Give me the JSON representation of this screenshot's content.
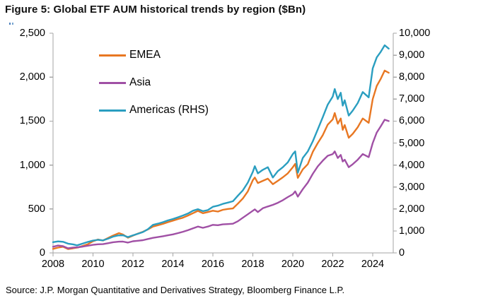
{
  "title": "Figure 5: Global ETF AUM historical trends by region ($Bn)",
  "source": "Source: J.P. Morgan Quantitative and Derivatives Strategy, Bloomberg Finance L.P.",
  "axis_color": "#a6a6a6",
  "chart_data": {
    "type": "line",
    "title": "Figure 5: Global ETF AUM historical trends by region ($Bn)",
    "grid": false,
    "legend_position": "top-left-inside",
    "x_axis": {
      "range": [
        2008,
        2025.0
      ],
      "ticks": [
        {
          "v": 2008,
          "label": "2008"
        },
        {
          "v": 2010,
          "label": "2010"
        },
        {
          "v": 2012,
          "label": "2012"
        },
        {
          "v": 2014,
          "label": "2014"
        },
        {
          "v": 2016,
          "label": "2016"
        },
        {
          "v": 2018,
          "label": "2018"
        },
        {
          "v": 2020,
          "label": "2020"
        },
        {
          "v": 2022,
          "label": "2022"
        },
        {
          "v": 2024,
          "label": "2024"
        }
      ]
    },
    "left_axis": {
      "range": [
        0,
        2500
      ],
      "ticks": [
        {
          "v": 0,
          "label": "0"
        },
        {
          "v": 500,
          "label": "500"
        },
        {
          "v": 1000,
          "label": "1,000"
        },
        {
          "v": 1500,
          "label": "1,500"
        },
        {
          "v": 2000,
          "label": "2,000"
        },
        {
          "v": 2500,
          "label": "2,500"
        }
      ]
    },
    "right_axis": {
      "range": [
        0,
        10000
      ],
      "ticks": [
        {
          "v": 0,
          "label": "0"
        },
        {
          "v": 1000,
          "label": "1,000"
        },
        {
          "v": 2000,
          "label": "2,000"
        },
        {
          "v": 3000,
          "label": "3,000"
        },
        {
          "v": 4000,
          "label": "4,000"
        },
        {
          "v": 5000,
          "label": "5,000"
        },
        {
          "v": 6000,
          "label": "6,000"
        },
        {
          "v": 7000,
          "label": "7,000"
        },
        {
          "v": 8000,
          "label": "8,000"
        },
        {
          "v": 9000,
          "label": "9,000"
        },
        {
          "v": 10000,
          "label": "10,000"
        }
      ]
    },
    "series": [
      {
        "name": "EMEA",
        "color": "#e87722",
        "axis": "left",
        "points": [
          [
            2008,
            46
          ],
          [
            2008.25,
            60
          ],
          [
            2008.5,
            70
          ],
          [
            2008.75,
            44
          ],
          [
            2009,
            52
          ],
          [
            2009.25,
            62
          ],
          [
            2009.5,
            80
          ],
          [
            2009.75,
            100
          ],
          [
            2010,
            133
          ],
          [
            2010.25,
            153
          ],
          [
            2010.5,
            141
          ],
          [
            2010.75,
            169
          ],
          [
            2011,
            197
          ],
          [
            2011.3,
            225
          ],
          [
            2011.5,
            209
          ],
          [
            2011.75,
            173
          ],
          [
            2012,
            197
          ],
          [
            2012.25,
            220
          ],
          [
            2012.5,
            240
          ],
          [
            2012.75,
            268
          ],
          [
            2013,
            300
          ],
          [
            2013.25,
            315
          ],
          [
            2013.5,
            330
          ],
          [
            2013.75,
            350
          ],
          [
            2014,
            367
          ],
          [
            2014.25,
            385
          ],
          [
            2014.5,
            400
          ],
          [
            2014.75,
            425
          ],
          [
            2015,
            452
          ],
          [
            2015.25,
            478
          ],
          [
            2015.5,
            452
          ],
          [
            2015.75,
            465
          ],
          [
            2016,
            480
          ],
          [
            2016.25,
            470
          ],
          [
            2016.5,
            490
          ],
          [
            2016.75,
            500
          ],
          [
            2017,
            506
          ],
          [
            2017.25,
            560
          ],
          [
            2017.5,
            620
          ],
          [
            2017.75,
            700
          ],
          [
            2018,
            828
          ],
          [
            2018.1,
            858
          ],
          [
            2018.25,
            795
          ],
          [
            2018.5,
            820
          ],
          [
            2018.75,
            845
          ],
          [
            2019,
            782
          ],
          [
            2019.25,
            820
          ],
          [
            2019.5,
            860
          ],
          [
            2019.75,
            905
          ],
          [
            2020,
            975
          ],
          [
            2020.12,
            1013
          ],
          [
            2020.25,
            854
          ],
          [
            2020.5,
            950
          ],
          [
            2020.75,
            1010
          ],
          [
            2021,
            1150
          ],
          [
            2021.25,
            1250
          ],
          [
            2021.5,
            1340
          ],
          [
            2021.75,
            1460
          ],
          [
            2022,
            1520
          ],
          [
            2022.1,
            1592
          ],
          [
            2022.25,
            1470
          ],
          [
            2022.4,
            1530
          ],
          [
            2022.5,
            1400
          ],
          [
            2022.6,
            1455
          ],
          [
            2022.8,
            1310
          ],
          [
            2023,
            1355
          ],
          [
            2023.25,
            1430
          ],
          [
            2023.5,
            1530
          ],
          [
            2023.8,
            1480
          ],
          [
            2024,
            1750
          ],
          [
            2024.2,
            1900
          ],
          [
            2024.4,
            1980
          ],
          [
            2024.6,
            2075
          ],
          [
            2024.8,
            2050
          ]
        ]
      },
      {
        "name": "Asia",
        "color": "#a050a5",
        "axis": "left",
        "points": [
          [
            2008,
            70
          ],
          [
            2008.25,
            84
          ],
          [
            2008.5,
            76
          ],
          [
            2008.75,
            52
          ],
          [
            2009,
            60
          ],
          [
            2009.25,
            64
          ],
          [
            2009.5,
            72
          ],
          [
            2009.75,
            82
          ],
          [
            2010,
            92
          ],
          [
            2010.25,
            98
          ],
          [
            2010.5,
            100
          ],
          [
            2010.75,
            110
          ],
          [
            2011,
            121
          ],
          [
            2011.3,
            128
          ],
          [
            2011.5,
            129
          ],
          [
            2011.75,
            117
          ],
          [
            2012,
            133
          ],
          [
            2012.25,
            138
          ],
          [
            2012.5,
            145
          ],
          [
            2012.75,
            158
          ],
          [
            2013,
            171
          ],
          [
            2013.25,
            180
          ],
          [
            2013.5,
            190
          ],
          [
            2013.75,
            200
          ],
          [
            2014,
            211
          ],
          [
            2014.25,
            225
          ],
          [
            2014.5,
            240
          ],
          [
            2014.75,
            258
          ],
          [
            2015,
            279
          ],
          [
            2015.25,
            300
          ],
          [
            2015.5,
            285
          ],
          [
            2015.75,
            300
          ],
          [
            2016,
            319
          ],
          [
            2016.25,
            315
          ],
          [
            2016.5,
            325
          ],
          [
            2016.75,
            328
          ],
          [
            2017,
            332
          ],
          [
            2017.25,
            360
          ],
          [
            2017.5,
            400
          ],
          [
            2017.75,
            440
          ],
          [
            2018,
            480
          ],
          [
            2018.1,
            495
          ],
          [
            2018.25,
            465
          ],
          [
            2018.5,
            508
          ],
          [
            2018.75,
            528
          ],
          [
            2019,
            547
          ],
          [
            2019.25,
            570
          ],
          [
            2019.5,
            600
          ],
          [
            2019.75,
            635
          ],
          [
            2020,
            667
          ],
          [
            2020.12,
            700
          ],
          [
            2020.25,
            640
          ],
          [
            2020.5,
            725
          ],
          [
            2020.75,
            800
          ],
          [
            2021,
            900
          ],
          [
            2021.25,
            985
          ],
          [
            2021.5,
            1050
          ],
          [
            2021.75,
            1105
          ],
          [
            2022,
            1125
          ],
          [
            2022.1,
            1155
          ],
          [
            2022.25,
            1080
          ],
          [
            2022.4,
            1115
          ],
          [
            2022.5,
            1040
          ],
          [
            2022.6,
            1060
          ],
          [
            2022.8,
            975
          ],
          [
            2023,
            1010
          ],
          [
            2023.25,
            1060
          ],
          [
            2023.5,
            1125
          ],
          [
            2023.8,
            1090
          ],
          [
            2024,
            1250
          ],
          [
            2024.2,
            1370
          ],
          [
            2024.4,
            1440
          ],
          [
            2024.6,
            1515
          ],
          [
            2024.8,
            1500
          ]
        ]
      },
      {
        "name": "Americas (RHS)",
        "color": "#2a9ec0",
        "axis": "right",
        "points": [
          [
            2008,
            490
          ],
          [
            2008.25,
            525
          ],
          [
            2008.5,
            505
          ],
          [
            2008.75,
            420
          ],
          [
            2009,
            390
          ],
          [
            2009.2,
            345
          ],
          [
            2009.5,
            430
          ],
          [
            2009.75,
            500
          ],
          [
            2010,
            560
          ],
          [
            2010.25,
            595
          ],
          [
            2010.5,
            570
          ],
          [
            2010.75,
            645
          ],
          [
            2011,
            740
          ],
          [
            2011.25,
            795
          ],
          [
            2011.5,
            805
          ],
          [
            2011.75,
            720
          ],
          [
            2012,
            800
          ],
          [
            2012.25,
            870
          ],
          [
            2012.5,
            950
          ],
          [
            2012.75,
            1080
          ],
          [
            2013,
            1276
          ],
          [
            2013.25,
            1330
          ],
          [
            2013.5,
            1400
          ],
          [
            2013.75,
            1480
          ],
          [
            2014,
            1543
          ],
          [
            2014.25,
            1620
          ],
          [
            2014.5,
            1700
          ],
          [
            2014.75,
            1790
          ],
          [
            2015,
            1920
          ],
          [
            2015.25,
            1990
          ],
          [
            2015.5,
            1900
          ],
          [
            2015.75,
            1950
          ],
          [
            2016,
            2100
          ],
          [
            2016.25,
            2150
          ],
          [
            2016.5,
            2230
          ],
          [
            2016.75,
            2290
          ],
          [
            2017,
            2350
          ],
          [
            2017.25,
            2600
          ],
          [
            2017.5,
            2850
          ],
          [
            2017.75,
            3200
          ],
          [
            2018,
            3690
          ],
          [
            2018.1,
            3950
          ],
          [
            2018.25,
            3620
          ],
          [
            2018.5,
            3780
          ],
          [
            2018.75,
            3900
          ],
          [
            2019,
            3430
          ],
          [
            2019.25,
            3720
          ],
          [
            2019.5,
            3900
          ],
          [
            2019.75,
            4120
          ],
          [
            2020,
            4500
          ],
          [
            2020.12,
            4620
          ],
          [
            2020.25,
            3650
          ],
          [
            2020.5,
            4320
          ],
          [
            2020.75,
            4620
          ],
          [
            2021,
            5080
          ],
          [
            2021.25,
            5620
          ],
          [
            2021.5,
            6180
          ],
          [
            2021.75,
            6750
          ],
          [
            2022,
            7120
          ],
          [
            2022.1,
            7460
          ],
          [
            2022.25,
            7000
          ],
          [
            2022.4,
            7290
          ],
          [
            2022.5,
            6700
          ],
          [
            2022.6,
            6950
          ],
          [
            2022.8,
            6250
          ],
          [
            2023,
            6480
          ],
          [
            2023.25,
            6820
          ],
          [
            2023.5,
            7320
          ],
          [
            2023.8,
            7080
          ],
          [
            2024,
            8400
          ],
          [
            2024.2,
            8900
          ],
          [
            2024.4,
            9150
          ],
          [
            2024.6,
            9450
          ],
          [
            2024.8,
            9300
          ]
        ]
      }
    ]
  }
}
